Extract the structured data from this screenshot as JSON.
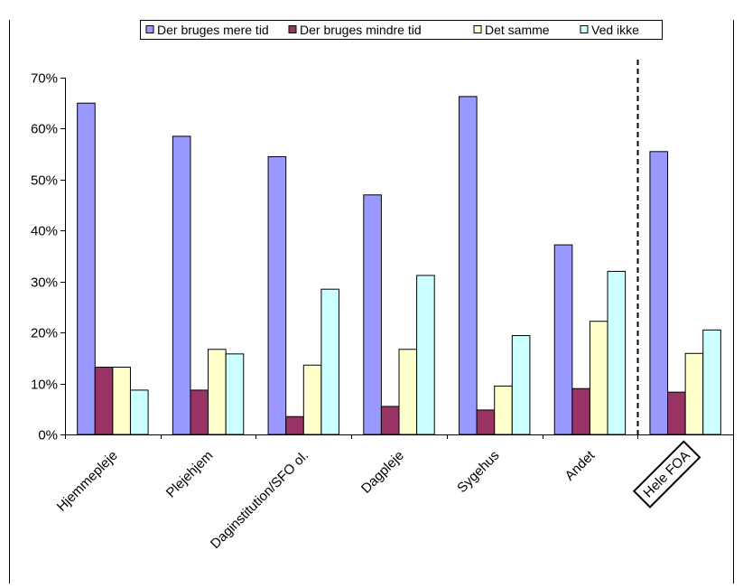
{
  "chart_data": {
    "type": "bar",
    "categories": [
      "Hjemmepleje",
      "Plejehjem",
      "Daginstitution/SFO ol.",
      "Dagpleje",
      "Sygehus",
      "Andet",
      "Hele FOA"
    ],
    "series": [
      {
        "name": "Der bruges mere tid",
        "color": "#9999FF",
        "values": [
          65,
          58.5,
          54.5,
          47,
          66.3,
          37.2,
          55.5
        ]
      },
      {
        "name": "Der bruges mindre tid",
        "color": "#993366",
        "values": [
          13.2,
          8.7,
          3.5,
          5.5,
          4.8,
          9,
          8.3
        ]
      },
      {
        "name": "Det samme",
        "color": "#FFFFCC",
        "values": [
          13.2,
          16.7,
          13.6,
          16.7,
          9.5,
          22.2,
          15.9
        ]
      },
      {
        "name": "Ved ikke",
        "color": "#CCFFFF",
        "values": [
          8.7,
          15.8,
          28.5,
          31.2,
          19.4,
          32,
          20.5
        ]
      }
    ],
    "y_ticks": [
      "0%",
      "10%",
      "20%",
      "30%",
      "40%",
      "50%",
      "60%",
      "70%"
    ],
    "ylim": [
      0,
      70
    ],
    "grid": false,
    "legend_position": "top",
    "separator_before_category": "Hele FOA",
    "boxed_category": "Hele FOA"
  }
}
